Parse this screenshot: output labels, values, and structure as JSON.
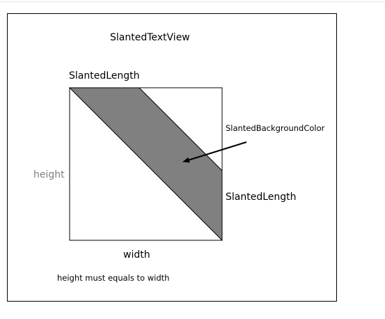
{
  "diagram": {
    "title": "SlantedTextView",
    "labels": {
      "slanted_length_top": "SlantedLength",
      "slanted_background_color": "SlantedBackgroundColor",
      "slanted_length_right": "SlantedLength",
      "height": "height",
      "width": "width",
      "note": "height must equals to width"
    },
    "colors": {
      "band_fill": "#808080",
      "stroke": "#000000",
      "height_label": "#808080"
    }
  }
}
